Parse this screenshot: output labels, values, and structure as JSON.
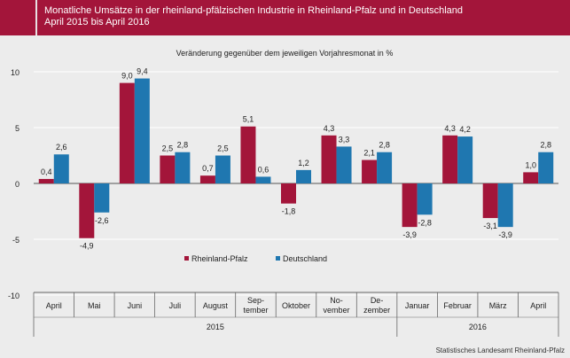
{
  "header": {
    "title_line1": "Monatliche Umsätze in der rheinland-pfälzischen Industrie in Rheinland-Pfalz und in Deutschland",
    "title_line2": "April 2015 bis April 2016"
  },
  "colors": {
    "header": "#a3153a",
    "rheinland_pfalz": "#a3153a",
    "deutschland": "#1f77b0",
    "background": "#ececec"
  },
  "chart_data": {
    "type": "bar",
    "subtitle": "Veränderung gegenüber dem jeweiligen Vorjahresmonat in %",
    "categories": [
      "April",
      "Mai",
      "Juni",
      "Juli",
      "August",
      "Sep-\ntember",
      "Oktober",
      "No-\nvember",
      "De-\nzember",
      "Januar",
      "Februar",
      "März",
      "April"
    ],
    "year_groups": [
      {
        "label": "2015",
        "from": 0,
        "to": 8
      },
      {
        "label": "2016",
        "from": 9,
        "to": 12
      }
    ],
    "series": [
      {
        "name": "Rheinland-Pfalz",
        "values": [
          0.4,
          -4.9,
          9.0,
          2.5,
          0.7,
          5.1,
          -1.8,
          4.3,
          2.1,
          -3.9,
          4.3,
          -3.1,
          1.0
        ],
        "labels": [
          "0,4",
          "-4,9",
          "9,0",
          "2,5",
          "0,7",
          "5,1",
          "-1,8",
          "4,3",
          "2,1",
          "-3,9",
          "4,3",
          "-3,1",
          "1,0"
        ]
      },
      {
        "name": "Deutschland",
        "values": [
          2.6,
          -2.6,
          9.4,
          2.8,
          2.5,
          0.6,
          1.2,
          3.3,
          2.8,
          -2.8,
          4.2,
          -3.9,
          2.8
        ],
        "labels": [
          "2,6",
          "-2,6",
          "9,4",
          "2,8",
          "2,5",
          "0,6",
          "1,2",
          "3,3",
          "2,8",
          "-2,8",
          "4,2",
          "-3,9",
          "2,8"
        ]
      }
    ],
    "yticks": [
      10,
      5,
      0,
      -5,
      -10
    ],
    "ytick_labels": [
      "10",
      "5",
      "0",
      "-5",
      "-10"
    ],
    "ylim": [
      -10,
      10
    ],
    "grid": true,
    "legend": "center"
  },
  "source": "Statistisches Landesamt Rheinland-Pfalz"
}
